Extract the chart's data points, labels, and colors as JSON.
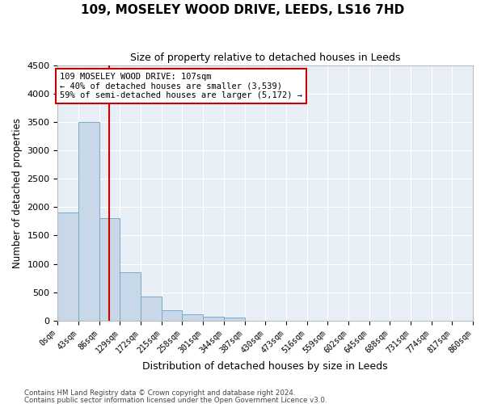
{
  "title": "109, MOSELEY WOOD DRIVE, LEEDS, LS16 7HD",
  "subtitle": "Size of property relative to detached houses in Leeds",
  "xlabel": "Distribution of detached houses by size in Leeds",
  "ylabel": "Number of detached properties",
  "bin_edges": [
    0,
    43,
    86,
    129,
    172,
    215,
    258,
    301,
    344,
    387,
    430,
    473,
    516,
    559,
    602,
    645,
    688,
    731,
    774,
    817,
    860
  ],
  "bar_heights": [
    1900,
    3500,
    1800,
    850,
    430,
    190,
    120,
    70,
    50,
    0,
    0,
    0,
    0,
    0,
    0,
    0,
    0,
    0,
    0,
    0
  ],
  "bar_color": "#c8d8e8",
  "bar_edgecolor": "#7aaac8",
  "vline_color": "#cc0000",
  "vline_x": 107,
  "annotation_line1": "109 MOSELEY WOOD DRIVE: 107sqm",
  "annotation_line2": "← 40% of detached houses are smaller (3,539)",
  "annotation_line3": "59% of semi-detached houses are larger (5,172) →",
  "ylim": [
    0,
    4500
  ],
  "yticks": [
    0,
    500,
    1000,
    1500,
    2000,
    2500,
    3000,
    3500,
    4000,
    4500
  ],
  "footer_line1": "Contains HM Land Registry data © Crown copyright and database right 2024.",
  "footer_line2": "Contains public sector information licensed under the Open Government Licence v3.0.",
  "fig_background": "#ffffff",
  "plot_background": "#e8eef5",
  "grid_color": "#ffffff",
  "tick_labels": [
    "0sqm",
    "43sqm",
    "86sqm",
    "129sqm",
    "172sqm",
    "215sqm",
    "258sqm",
    "301sqm",
    "344sqm",
    "387sqm",
    "430sqm",
    "473sqm",
    "516sqm",
    "559sqm",
    "602sqm",
    "645sqm",
    "688sqm",
    "731sqm",
    "774sqm",
    "817sqm",
    "860sqm"
  ]
}
